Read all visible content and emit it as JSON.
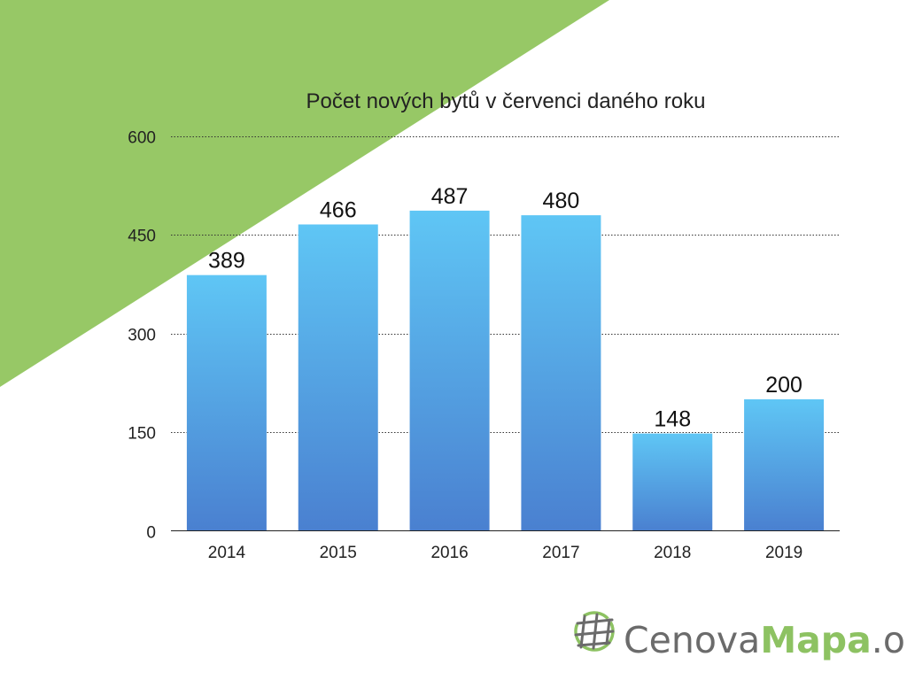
{
  "chart_data": {
    "type": "bar",
    "title": "Počet nových bytů v červenci daného roku",
    "categories": [
      "2014",
      "2015",
      "2016",
      "2017",
      "2018",
      "2019"
    ],
    "values": [
      389,
      466,
      487,
      480,
      148,
      200
    ],
    "data_labels": [
      "389",
      "466",
      "487",
      "480",
      "148",
      "200"
    ],
    "ylim": [
      0,
      600
    ],
    "yticks": [
      0,
      150,
      300,
      450,
      600
    ],
    "ytick_labels": [
      "0",
      "150",
      "300",
      "450",
      "600"
    ],
    "xlabel": "",
    "ylabel": "",
    "grid": "horizontal dotted",
    "legend": "none",
    "bar_gradient": [
      "#5fc6f5",
      "#4a80d0"
    ]
  },
  "brand": {
    "name_part1": "Cenova",
    "name_part2": "Mapa",
    "name_part3": ".org",
    "logo_icon": "globe-grid-icon",
    "green": "#8dc262",
    "gray": "#6b6b6b"
  },
  "decoration": {
    "triangle_color": "#97c866"
  }
}
